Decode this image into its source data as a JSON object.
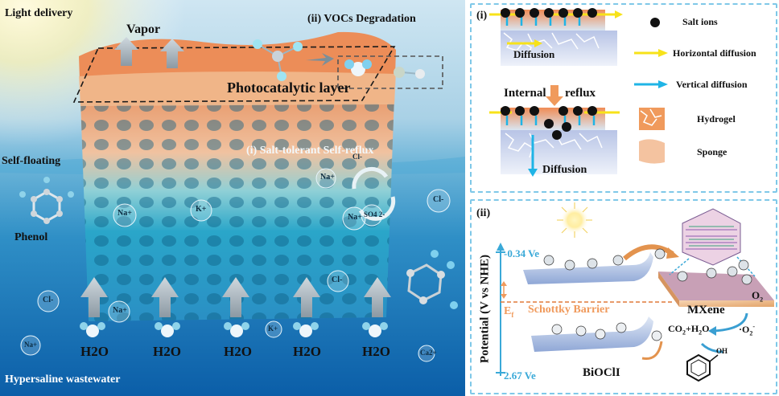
{
  "left_scene": {
    "labels": {
      "light_delivery": "Light delivery",
      "vapor": "Vapor",
      "vocs": "(ii) VOCs Degradation",
      "photocatalytic_layer": "Photocatalytic layer",
      "salt_tolerant": "(i) Salt-tolerant Self-reflux",
      "self_floating": "Self-floating",
      "phenol": "Phenol",
      "hypersaline": "Hypersaline wastewater",
      "h2o": "H2O"
    },
    "ions": [
      "Na+",
      "K+",
      "Na+",
      "Na+",
      "SO4 2-",
      "Cl-",
      "Cl-",
      "Na+",
      "Cl-",
      "Na+",
      "K+",
      "Ca2+",
      "Cl-"
    ]
  },
  "panel_i": {
    "tag": "(i)",
    "diffusion_top": "Diffusion",
    "internal": "Internal",
    "reflux": "reflux",
    "diffusion_bottom": "Diffusion",
    "legend": {
      "salt_ions": "Salt ions",
      "horizontal": "Horizontal diffusion",
      "vertical": "Vertical diffusion",
      "hydrogel": "Hydrogel",
      "sponge": "Sponge"
    },
    "colors": {
      "horizontal": "#f7e21a",
      "vertical": "#1fb4e6"
    }
  },
  "panel_ii": {
    "tag": "(ii)",
    "axis_label": "Potential (V vs NHE)",
    "cb": "-0.34 Ve",
    "vb": "2.67 Ve",
    "ef": "E",
    "ef_sub": "f",
    "schottky": "Schottky Barrier",
    "mxene": "MXene",
    "biocl": "BiOClI",
    "o2": "O",
    "o2_sub": "2",
    "superoxide": "·O",
    "superoxide_sub": "2",
    "superoxide_sup": "-",
    "products": "CO",
    "products_sub": "2",
    "products_rest": "+H",
    "products_sub2": "2",
    "products_end": "O",
    "oh": "OH",
    "electron": "e-",
    "hole": "h+"
  }
}
